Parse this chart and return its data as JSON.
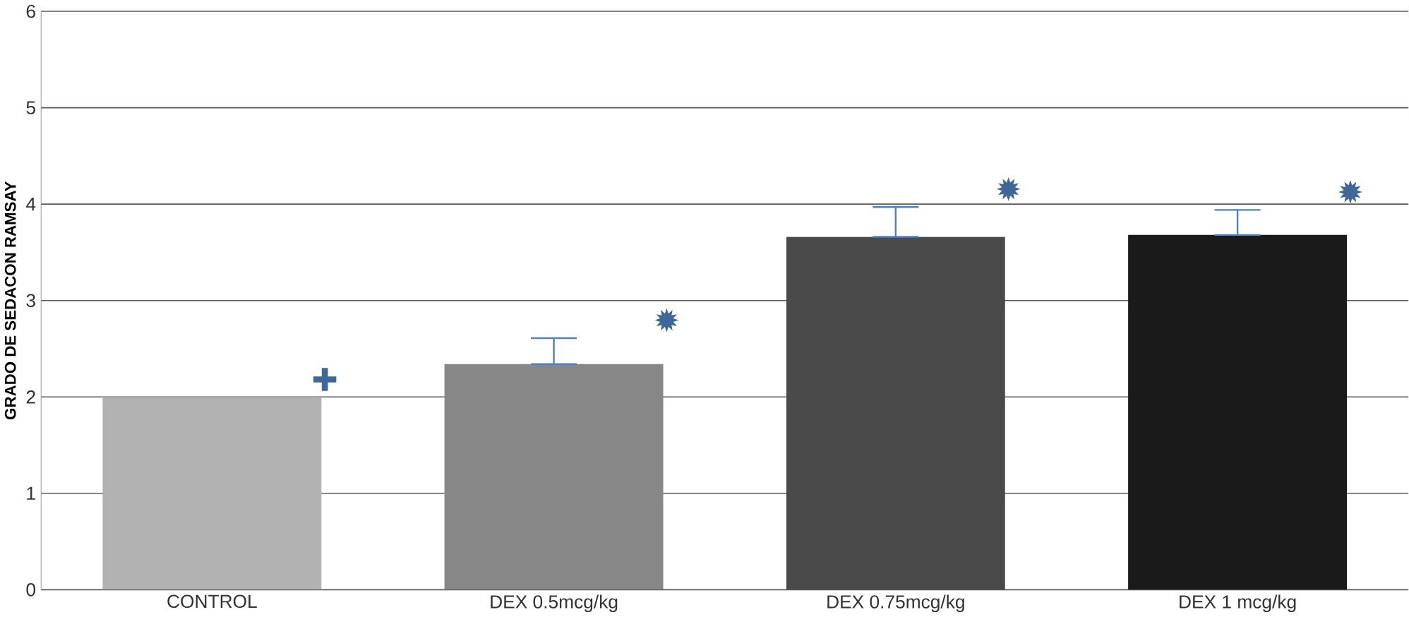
{
  "chart_data": {
    "type": "bar",
    "ylabel": "GRADO DE SEDACON RAMSAY",
    "categories": [
      "CONTROL",
      "DEX 0.5mcg/kg",
      "DEX 0.75mcg/kg",
      "DEX 1 mcg/kg"
    ],
    "values": [
      2.0,
      2.34,
      3.66,
      3.68
    ],
    "colors": [
      "#b2b2b2",
      "#878787",
      "#4a4a4a",
      "#1a1a1a"
    ],
    "errors": [
      null,
      [
        2.34,
        2.61
      ],
      [
        3.66,
        3.97
      ],
      [
        3.68,
        3.94
      ]
    ],
    "ylim": [
      0,
      6
    ],
    "yticks": [
      0,
      1,
      2,
      3,
      4,
      5,
      6
    ],
    "grid": "y",
    "annotations": [
      "✚",
      "✹",
      "✹",
      "✹"
    ]
  }
}
